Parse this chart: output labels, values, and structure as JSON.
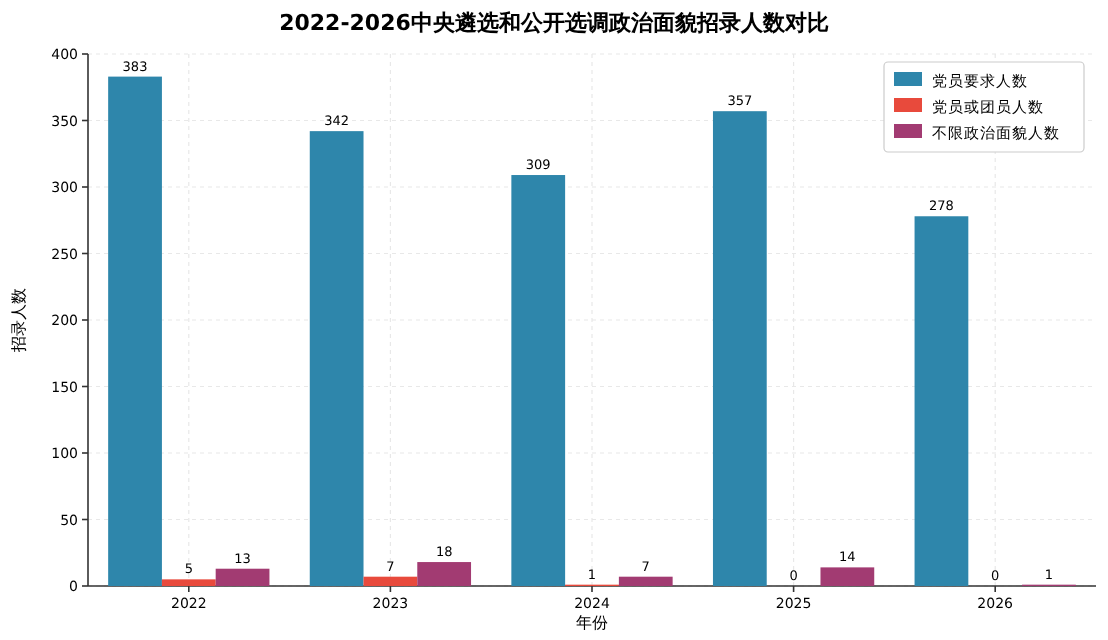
{
  "chart_data": {
    "type": "bar",
    "title": "2022-2026中央遴选和公开选调政治面貌招录人数对比",
    "xlabel": "年份",
    "ylabel": "招录人数",
    "categories": [
      "2022",
      "2023",
      "2024",
      "2025",
      "2026"
    ],
    "series": [
      {
        "name": "党员要求人数",
        "color": "#2e86ab",
        "values": [
          383,
          342,
          309,
          357,
          278
        ]
      },
      {
        "name": "党员或团员人数",
        "color": "#e84a3c",
        "values": [
          5,
          7,
          1,
          0,
          0
        ]
      },
      {
        "name": "不限政治面貌人数",
        "color": "#a23b72",
        "values": [
          13,
          18,
          7,
          14,
          1
        ]
      }
    ],
    "ylim": [
      0,
      400
    ],
    "yticks": [
      0,
      50,
      100,
      150,
      200,
      250,
      300,
      350,
      400
    ],
    "grid": true,
    "legend": "top right",
    "data_labels": true
  }
}
